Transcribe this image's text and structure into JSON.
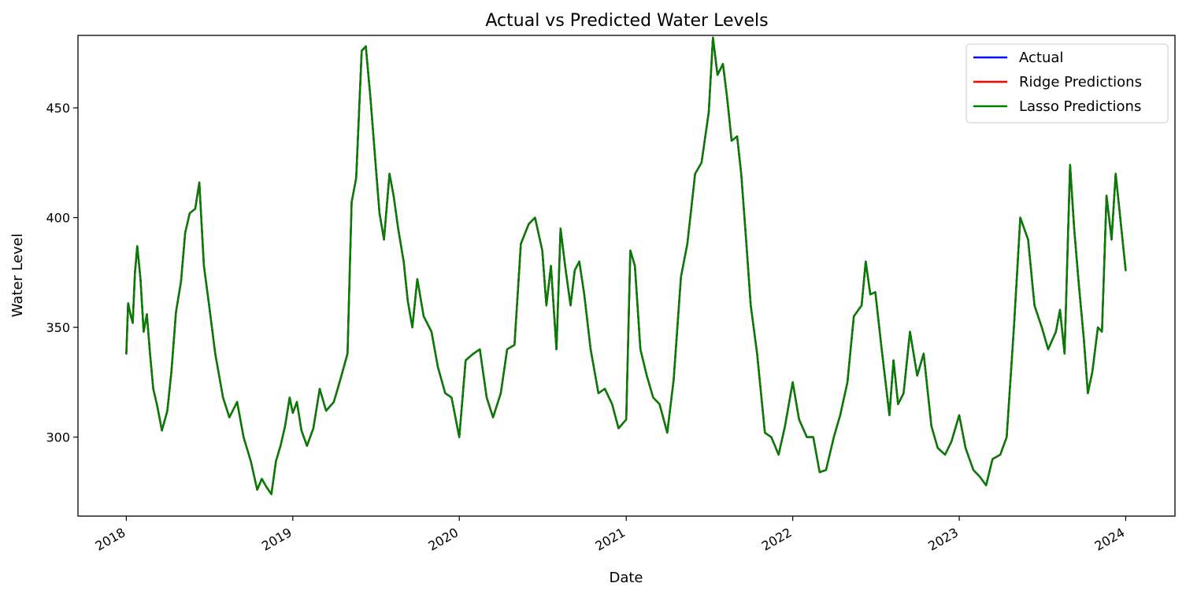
{
  "chart_data": {
    "type": "line",
    "title": "Actual vs Predicted Water Levels",
    "xlabel": "Date",
    "ylabel": "Water Level",
    "xlim": [
      "2017-09-17",
      "2024-04-18"
    ],
    "ylim": [
      264,
      483
    ],
    "x_ticks": [
      "2018",
      "2019",
      "2020",
      "2021",
      "2022",
      "2023",
      "2024"
    ],
    "y_ticks": [
      300,
      350,
      400,
      450
    ],
    "grid": false,
    "legend_position": "upper right",
    "x": [
      "2018-01-01",
      "2018-01-05",
      "2018-01-10",
      "2018-01-15",
      "2018-01-20",
      "2018-01-25",
      "2018-02-01",
      "2018-02-08",
      "2018-02-15",
      "2018-02-22",
      "2018-03-01",
      "2018-03-10",
      "2018-03-20",
      "2018-04-01",
      "2018-04-10",
      "2018-04-20",
      "2018-05-01",
      "2018-05-10",
      "2018-05-20",
      "2018-06-01",
      "2018-06-10",
      "2018-06-20",
      "2018-07-01",
      "2018-07-15",
      "2018-08-01",
      "2018-08-15",
      "2018-09-01",
      "2018-09-15",
      "2018-10-01",
      "2018-10-15",
      "2018-10-25",
      "2018-11-05",
      "2018-11-15",
      "2018-11-25",
      "2018-12-05",
      "2018-12-15",
      "2018-12-25",
      "2019-01-01",
      "2019-01-10",
      "2019-01-20",
      "2019-02-01",
      "2019-02-15",
      "2019-03-01",
      "2019-03-15",
      "2019-04-01",
      "2019-04-15",
      "2019-05-01",
      "2019-05-10",
      "2019-05-20",
      "2019-06-01",
      "2019-06-10",
      "2019-06-20",
      "2019-07-01",
      "2019-07-10",
      "2019-07-20",
      "2019-08-01",
      "2019-08-10",
      "2019-08-20",
      "2019-09-01",
      "2019-09-10",
      "2019-09-20",
      "2019-10-01",
      "2019-10-15",
      "2019-11-01",
      "2019-11-15",
      "2019-12-01",
      "2019-12-15",
      "2020-01-01",
      "2020-01-15",
      "2020-02-01",
      "2020-02-15",
      "2020-03-01",
      "2020-03-15",
      "2020-04-01",
      "2020-04-15",
      "2020-05-01",
      "2020-05-15",
      "2020-06-01",
      "2020-06-15",
      "2020-07-01",
      "2020-07-10",
      "2020-07-20",
      "2020-08-01",
      "2020-08-10",
      "2020-08-20",
      "2020-09-01",
      "2020-09-10",
      "2020-09-20",
      "2020-10-01",
      "2020-10-15",
      "2020-11-01",
      "2020-11-15",
      "2020-12-01",
      "2020-12-15",
      "2021-01-01",
      "2021-01-10",
      "2021-01-20",
      "2021-02-01",
      "2021-02-15",
      "2021-03-01",
      "2021-03-15",
      "2021-04-01",
      "2021-04-15",
      "2021-05-01",
      "2021-05-15",
      "2021-06-01",
      "2021-06-15",
      "2021-07-01",
      "2021-07-10",
      "2021-07-20",
      "2021-08-01",
      "2021-08-10",
      "2021-08-20",
      "2021-09-01",
      "2021-09-10",
      "2021-09-20",
      "2021-10-01",
      "2021-10-15",
      "2021-11-01",
      "2021-11-15",
      "2021-12-01",
      "2021-12-15",
      "2022-01-01",
      "2022-01-15",
      "2022-02-01",
      "2022-02-15",
      "2022-03-01",
      "2022-03-15",
      "2022-04-01",
      "2022-04-15",
      "2022-05-01",
      "2022-05-15",
      "2022-06-01",
      "2022-06-10",
      "2022-06-20",
      "2022-07-01",
      "2022-07-15",
      "2022-08-01",
      "2022-08-10",
      "2022-08-20",
      "2022-09-01",
      "2022-09-15",
      "2022-10-01",
      "2022-10-15",
      "2022-11-01",
      "2022-11-15",
      "2022-12-01",
      "2022-12-15",
      "2023-01-01",
      "2023-01-15",
      "2023-02-01",
      "2023-02-15",
      "2023-03-01",
      "2023-03-15",
      "2023-04-01",
      "2023-04-15",
      "2023-05-01",
      "2023-05-15",
      "2023-06-01",
      "2023-06-15",
      "2023-07-01",
      "2023-07-15",
      "2023-08-01",
      "2023-08-10",
      "2023-08-20",
      "2023-09-01",
      "2023-09-10",
      "2023-09-20",
      "2023-10-01",
      "2023-10-10",
      "2023-10-20",
      "2023-11-01",
      "2023-11-10",
      "2023-11-20",
      "2023-12-01",
      "2023-12-10",
      "2023-12-20",
      "2024-01-01"
    ],
    "series": [
      {
        "name": "Actual",
        "color": "#0000ff",
        "values": [
          338,
          361,
          356,
          352,
          375,
          387,
          372,
          348,
          356,
          338,
          322,
          314,
          303,
          312,
          330,
          357,
          371,
          393,
          402,
          404,
          416,
          378,
          361,
          338,
          318,
          309,
          316,
          300,
          289,
          276,
          281,
          277,
          274,
          289,
          296,
          305,
          318,
          311,
          316,
          303,
          296,
          304,
          322,
          312,
          316,
          326,
          338,
          407,
          418,
          476,
          478,
          455,
          426,
          402,
          390,
          420,
          410,
          395,
          380,
          362,
          350,
          372,
          355,
          348,
          332,
          320,
          318,
          300,
          335,
          338,
          340,
          318,
          309,
          320,
          340,
          342,
          388,
          397,
          400,
          385,
          360,
          378,
          340,
          395,
          378,
          360,
          376,
          380,
          365,
          340,
          320,
          322,
          315,
          304,
          308,
          385,
          378,
          340,
          328,
          318,
          315,
          302,
          326,
          373,
          388,
          420,
          425,
          448,
          482,
          465,
          470,
          455,
          435,
          437,
          420,
          392,
          360,
          338,
          302,
          300,
          292,
          305,
          325,
          308,
          300,
          300,
          284,
          285,
          300,
          310,
          325,
          355,
          360,
          380,
          365,
          366,
          340,
          310,
          335,
          315,
          320,
          348,
          328,
          338,
          305,
          295,
          292,
          298,
          310,
          295,
          285,
          282,
          278,
          290,
          292,
          300,
          350,
          400,
          390,
          360,
          350,
          340,
          348,
          358,
          338,
          424,
          395,
          370,
          345,
          320,
          330,
          350,
          348,
          410,
          390,
          420,
          400,
          376
        ]
      },
      {
        "name": "Ridge Predictions",
        "color": "#ff0000",
        "values": [
          338,
          361,
          356,
          352,
          375,
          387,
          372,
          348,
          356,
          338,
          322,
          314,
          303,
          312,
          330,
          357,
          371,
          393,
          402,
          404,
          416,
          378,
          361,
          338,
          318,
          309,
          316,
          300,
          289,
          276,
          281,
          277,
          274,
          289,
          296,
          305,
          318,
          311,
          316,
          303,
          296,
          304,
          322,
          312,
          316,
          326,
          338,
          407,
          418,
          476,
          478,
          455,
          426,
          402,
          390,
          420,
          410,
          395,
          380,
          362,
          350,
          372,
          355,
          348,
          332,
          320,
          318,
          300,
          335,
          338,
          340,
          318,
          309,
          320,
          340,
          342,
          388,
          397,
          400,
          385,
          360,
          378,
          340,
          395,
          378,
          360,
          376,
          380,
          365,
          340,
          320,
          322,
          315,
          304,
          308,
          385,
          378,
          340,
          328,
          318,
          315,
          302,
          326,
          373,
          388,
          420,
          425,
          448,
          482,
          465,
          470,
          455,
          435,
          437,
          420,
          392,
          360,
          338,
          302,
          300,
          292,
          305,
          325,
          308,
          300,
          300,
          284,
          285,
          300,
          310,
          325,
          355,
          360,
          380,
          365,
          366,
          340,
          310,
          335,
          315,
          320,
          348,
          328,
          338,
          305,
          295,
          292,
          298,
          310,
          295,
          285,
          282,
          278,
          290,
          292,
          300,
          350,
          400,
          390,
          360,
          350,
          340,
          348,
          358,
          338,
          424,
          395,
          370,
          345,
          320,
          330,
          350,
          348,
          410,
          390,
          420,
          400,
          376
        ]
      },
      {
        "name": "Lasso Predictions",
        "color": "#008000",
        "values": [
          338,
          361,
          356,
          352,
          375,
          387,
          372,
          348,
          356,
          338,
          322,
          314,
          303,
          312,
          330,
          357,
          371,
          393,
          402,
          404,
          416,
          378,
          361,
          338,
          318,
          309,
          316,
          300,
          289,
          276,
          281,
          277,
          274,
          289,
          296,
          305,
          318,
          311,
          316,
          303,
          296,
          304,
          322,
          312,
          316,
          326,
          338,
          407,
          418,
          476,
          478,
          455,
          426,
          402,
          390,
          420,
          410,
          395,
          380,
          362,
          350,
          372,
          355,
          348,
          332,
          320,
          318,
          300,
          335,
          338,
          340,
          318,
          309,
          320,
          340,
          342,
          388,
          397,
          400,
          385,
          360,
          378,
          340,
          395,
          378,
          360,
          376,
          380,
          365,
          340,
          320,
          322,
          315,
          304,
          308,
          385,
          378,
          340,
          328,
          318,
          315,
          302,
          326,
          373,
          388,
          420,
          425,
          448,
          482,
          465,
          470,
          455,
          435,
          437,
          420,
          392,
          360,
          338,
          302,
          300,
          292,
          305,
          325,
          308,
          300,
          300,
          284,
          285,
          300,
          310,
          325,
          355,
          360,
          380,
          365,
          366,
          340,
          310,
          335,
          315,
          320,
          348,
          328,
          338,
          305,
          295,
          292,
          298,
          310,
          295,
          285,
          282,
          278,
          290,
          292,
          300,
          350,
          400,
          390,
          360,
          350,
          340,
          348,
          358,
          338,
          424,
          395,
          370,
          345,
          320,
          330,
          350,
          348,
          410,
          390,
          420,
          400,
          376
        ]
      }
    ]
  }
}
